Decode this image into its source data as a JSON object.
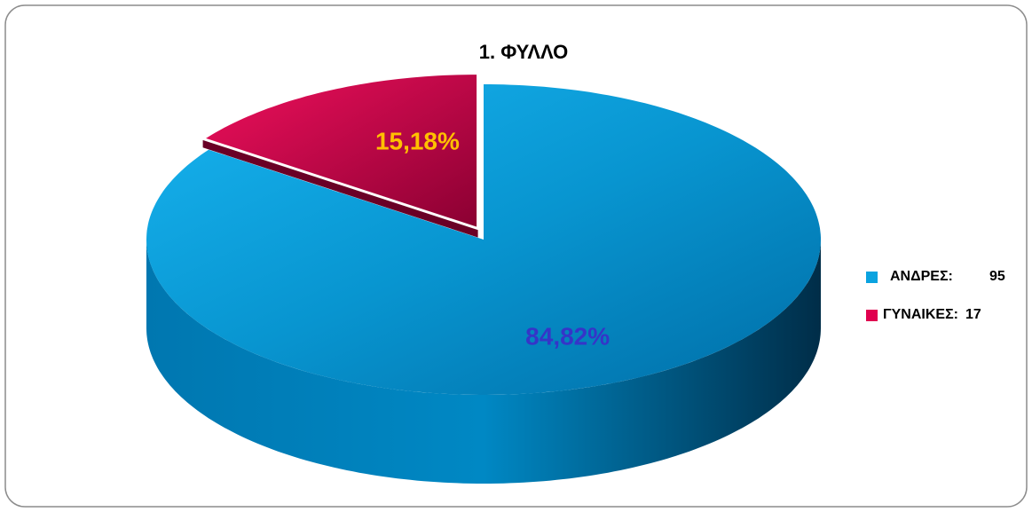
{
  "chart_data": {
    "type": "pie3d",
    "title": "1. ΦΥΛΛΟ",
    "categories": [
      "ΑΝΔΡΕΣ:",
      "ΓΥΝΑΙΚΕΣ:"
    ],
    "counts": [
      95,
      17
    ],
    "values": [
      84.82,
      15.18
    ],
    "value_labels": [
      "84,82%",
      "15,18%"
    ],
    "colors": [
      "#0aa3e0",
      "#e0004f"
    ],
    "label_colors": [
      "#3535c8",
      "#ffc000"
    ],
    "legend": "right"
  }
}
